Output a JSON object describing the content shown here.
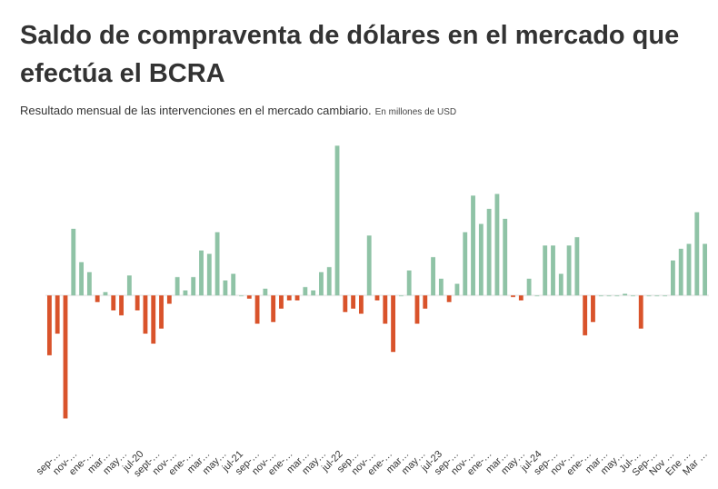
{
  "header": {
    "title": "Saldo de compraventa de dólares en el mercado que efectúa el BCRA",
    "subtitle": "Resultado  mensual de las intervenciones en el mercado cambiario.",
    "note": "En millones de USD"
  },
  "colors": {
    "positive": "#8fc3a6",
    "negative": "#d9532b",
    "axis": "#dddddd"
  },
  "chart_data": {
    "type": "bar",
    "title": "Saldo de compraventa de dólares en el mercado que efectúa el BCRA",
    "subtitle": "Resultado  mensual de las intervenciones en el mercado cambiario.",
    "ylabel": "",
    "unit": "En millones de USD",
    "grid": false,
    "legend": "none",
    "ylim": [
      -3700,
      4500
    ],
    "tick_labels": [
      "sep-…",
      "nov-…",
      "ene-…",
      "mar…",
      "may…",
      "jul-20",
      "sept-…",
      "nov-…",
      "ene-…",
      "mar…",
      "may…",
      "jul-21",
      "sep-…",
      "nov-…",
      "ene-…",
      "mar…",
      "may…",
      "jul-22",
      "sep…",
      "nov-…",
      "ene-…",
      "mar…",
      "may…",
      "jul-23",
      "sep-…",
      "nov-…",
      "ene-…",
      "mar…",
      "may…",
      "jul-24",
      "sep-…",
      "nov-…",
      "ene-…",
      "mar…",
      "may…",
      "Jul-…",
      "Sep-…",
      "Nov …",
      "Ene …",
      "Mar …"
    ],
    "values": [
      -1800,
      -1150,
      -3700,
      2000,
      1000,
      700,
      -200,
      100,
      -450,
      -600,
      600,
      -450,
      -1150,
      -1450,
      -1000,
      -250,
      550,
      150,
      550,
      1350,
      1250,
      1900,
      450,
      650,
      0,
      -100,
      -850,
      200,
      -800,
      -400,
      -150,
      -150,
      250,
      150,
      700,
      850,
      4500,
      -500,
      -400,
      -550,
      1800,
      -150,
      -850,
      -1700,
      0,
      750,
      -850,
      -400,
      1150,
      500,
      -200,
      350,
      1900,
      3000,
      2150,
      2600,
      3050,
      2300,
      -50,
      -150,
      500,
      0,
      1500,
      1500,
      650,
      1500,
      1750,
      -1200,
      -800,
      0,
      0,
      0,
      50,
      0,
      -1000,
      0,
      0,
      0,
      1050,
      1400,
      1550,
      2500,
      1550
    ],
    "value_note": "Values estimated from bar heights; no numeric axis is printed."
  }
}
